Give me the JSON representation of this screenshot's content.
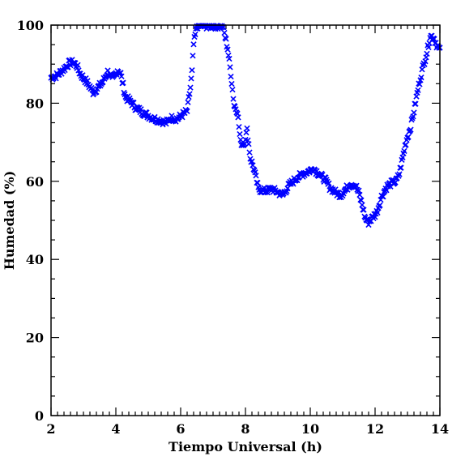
{
  "chart_data": {
    "type": "scatter",
    "xlabel": "Tiempo Universal (h)",
    "ylabel": "Humedad (%)",
    "xlim": [
      2,
      14
    ],
    "ylim": [
      0,
      100
    ],
    "xticks": [
      2,
      4,
      6,
      8,
      10,
      12,
      14
    ],
    "xtick_labels": [
      "2",
      "4",
      "6",
      "8",
      "10",
      "12",
      "14"
    ],
    "yticks": [
      0,
      20,
      40,
      60,
      80,
      100
    ],
    "ytick_labels": [
      "0",
      "20",
      "40",
      "60",
      "80",
      "100"
    ],
    "x_minor_step": 0.2,
    "y_minor_step": 5,
    "marker": "x",
    "color": "#0000ff",
    "grid": false,
    "anchors": [
      [
        2.0,
        86.5
      ],
      [
        2.2,
        87.2
      ],
      [
        2.4,
        88.8
      ],
      [
        2.55,
        90.2
      ],
      [
        2.7,
        90.5
      ],
      [
        2.8,
        89.5
      ],
      [
        2.9,
        87.5
      ],
      [
        3.05,
        86.0
      ],
      [
        3.2,
        84.2
      ],
      [
        3.3,
        82.8
      ],
      [
        3.45,
        84.0
      ],
      [
        3.6,
        85.5
      ],
      [
        3.75,
        88.0
      ],
      [
        3.9,
        86.0
      ],
      [
        4.05,
        88.5
      ],
      [
        4.15,
        87.5
      ],
      [
        4.3,
        81.5
      ],
      [
        4.45,
        80.5
      ],
      [
        4.6,
        79.0
      ],
      [
        4.8,
        77.8
      ],
      [
        5.0,
        76.8
      ],
      [
        5.2,
        76.0
      ],
      [
        5.4,
        75.5
      ],
      [
        5.55,
        75.0
      ],
      [
        5.7,
        76.2
      ],
      [
        5.9,
        76.0
      ],
      [
        6.05,
        77.0
      ],
      [
        6.2,
        78.0
      ],
      [
        6.3,
        84.0
      ],
      [
        6.35,
        88.0
      ],
      [
        6.4,
        95.0
      ],
      [
        6.5,
        99.8
      ],
      [
        7.3,
        99.8
      ],
      [
        7.45,
        94.0
      ],
      [
        7.55,
        87.5
      ],
      [
        7.65,
        79.5
      ],
      [
        7.75,
        78.0
      ],
      [
        7.85,
        70.0
      ],
      [
        7.95,
        69.5
      ],
      [
        8.05,
        73.0
      ],
      [
        8.15,
        66.0
      ],
      [
        8.25,
        63.5
      ],
      [
        8.4,
        58.0
      ],
      [
        8.6,
        57.5
      ],
      [
        8.8,
        58.0
      ],
      [
        9.0,
        57.2
      ],
      [
        9.15,
        56.5
      ],
      [
        9.35,
        59.0
      ],
      [
        9.6,
        61.0
      ],
      [
        9.8,
        62.0
      ],
      [
        10.0,
        62.8
      ],
      [
        10.1,
        63.3
      ],
      [
        10.25,
        62.0
      ],
      [
        10.45,
        60.5
      ],
      [
        10.6,
        58.5
      ],
      [
        10.8,
        57.0
      ],
      [
        10.95,
        56.5
      ],
      [
        11.1,
        58.0
      ],
      [
        11.25,
        59.5
      ],
      [
        11.4,
        58.8
      ],
      [
        11.5,
        57.0
      ],
      [
        11.6,
        54.0
      ],
      [
        11.7,
        50.5
      ],
      [
        11.8,
        49.5
      ],
      [
        11.9,
        50.5
      ],
      [
        12.05,
        52.0
      ],
      [
        12.2,
        56.0
      ],
      [
        12.35,
        58.5
      ],
      [
        12.5,
        59.5
      ],
      [
        12.65,
        60.0
      ],
      [
        12.75,
        62.0
      ],
      [
        12.85,
        66.0
      ],
      [
        12.95,
        70.0
      ],
      [
        13.1,
        74.0
      ],
      [
        13.2,
        78.0
      ],
      [
        13.3,
        82.5
      ],
      [
        13.4,
        86.5
      ],
      [
        13.5,
        90.0
      ],
      [
        13.6,
        93.0
      ],
      [
        13.7,
        97.2
      ],
      [
        13.8,
        97.0
      ],
      [
        13.9,
        95.0
      ],
      [
        14.0,
        93.5
      ]
    ]
  }
}
